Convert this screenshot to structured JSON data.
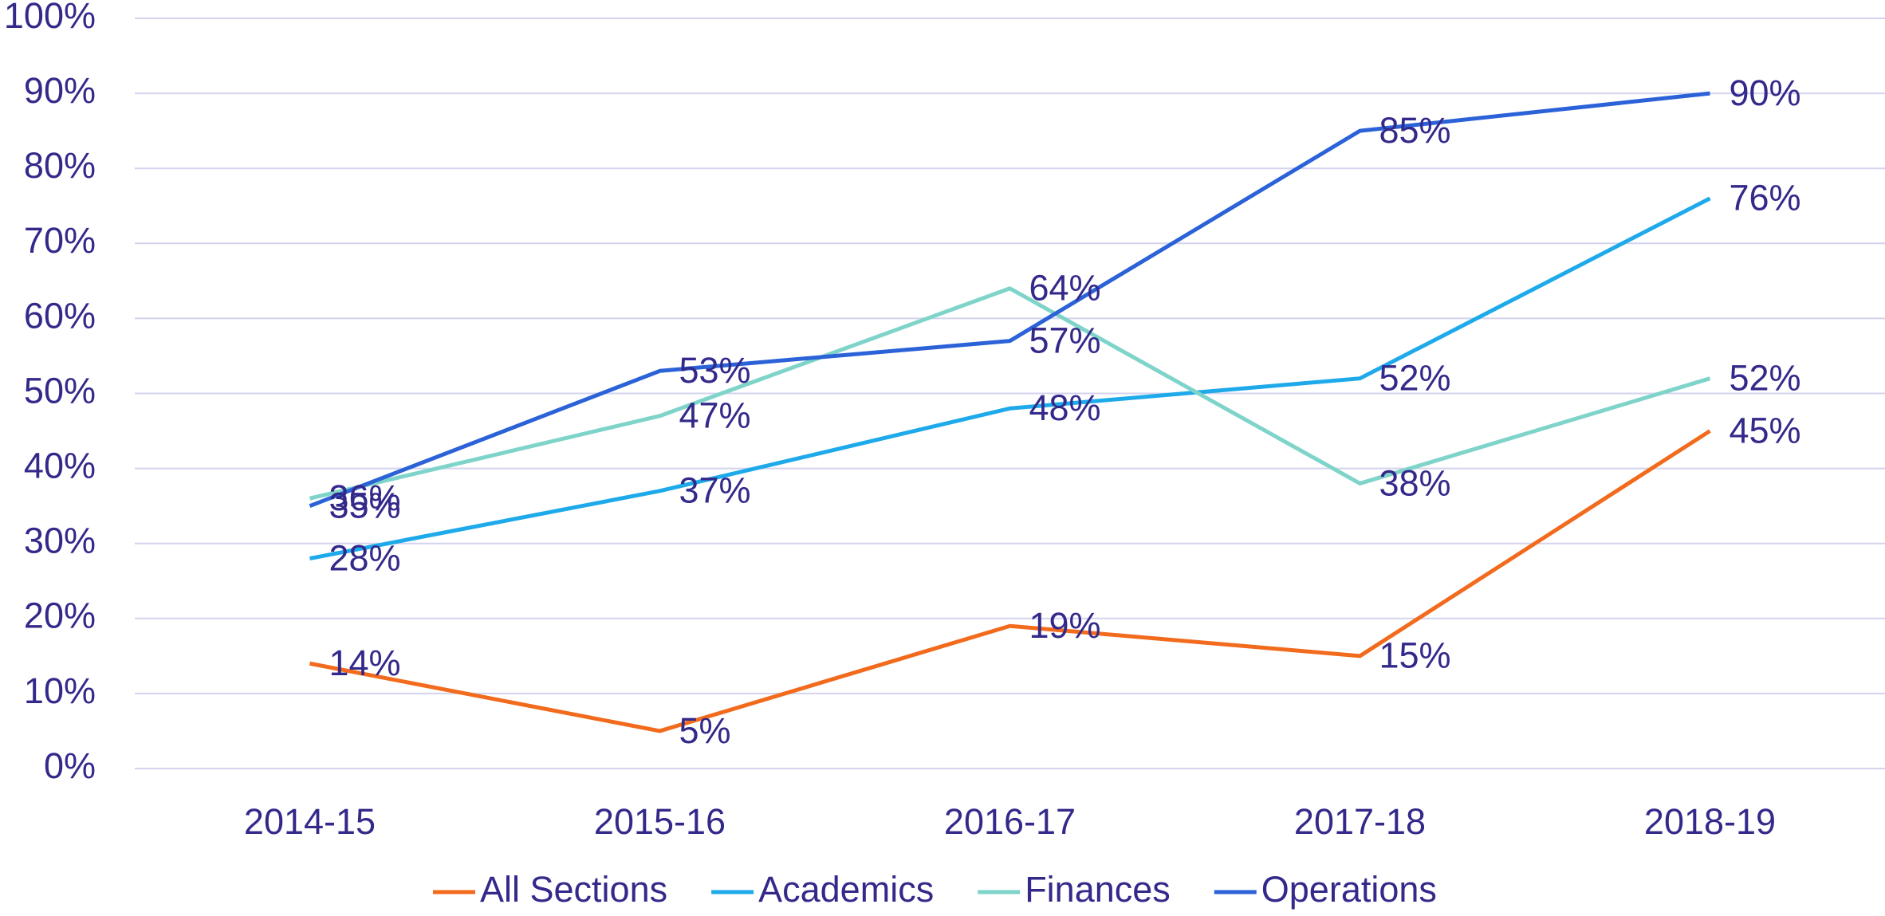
{
  "chart_data": {
    "type": "line",
    "categories": [
      "2014-15",
      "2015-16",
      "2016-17",
      "2017-18",
      "2018-19"
    ],
    "series": [
      {
        "name": "All Sections",
        "color": "#f26b1d",
        "values": [
          14,
          5,
          19,
          15,
          45
        ],
        "value_labels": [
          "14%",
          "5%",
          "19%",
          "15%",
          "45%"
        ]
      },
      {
        "name": "Academics",
        "color": "#1eaaea",
        "values": [
          28,
          37,
          48,
          52,
          76
        ],
        "value_labels": [
          "28%",
          "37%",
          "48%",
          "52%",
          "76%"
        ]
      },
      {
        "name": "Finances",
        "color": "#7fd4ca",
        "values": [
          36,
          47,
          64,
          38,
          52
        ],
        "value_labels": [
          "36%",
          "47%",
          "64%",
          "38%",
          "52%"
        ]
      },
      {
        "name": "Operations",
        "color": "#2b62d8",
        "values": [
          35,
          53,
          57,
          85,
          90
        ],
        "value_labels": [
          "35%",
          "53%",
          "57%",
          "85%",
          "90%"
        ]
      }
    ],
    "ylim": [
      0,
      100
    ],
    "yticks": [
      {
        "value": 0,
        "label": "0%"
      },
      {
        "value": 10,
        "label": "10%"
      },
      {
        "value": 20,
        "label": "20%"
      },
      {
        "value": 30,
        "label": "30%"
      },
      {
        "value": 40,
        "label": "40%"
      },
      {
        "value": 50,
        "label": "50%"
      },
      {
        "value": 60,
        "label": "60%"
      },
      {
        "value": 70,
        "label": "70%"
      },
      {
        "value": 80,
        "label": "80%"
      },
      {
        "value": 90,
        "label": "90%"
      },
      {
        "value": 100,
        "label": "100%"
      }
    ],
    "grid": true,
    "legend": "bottom"
  }
}
